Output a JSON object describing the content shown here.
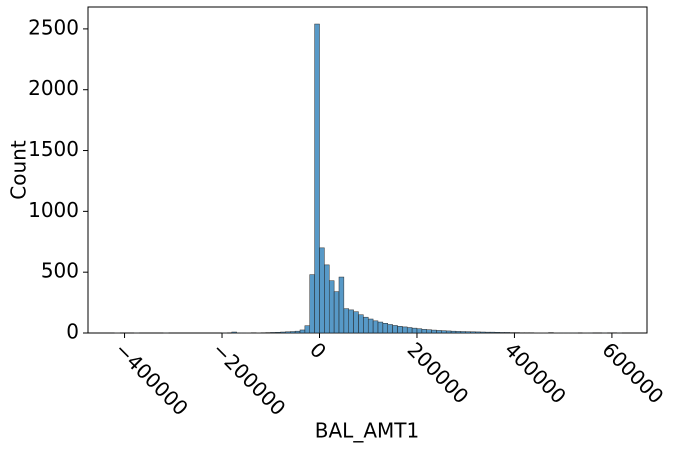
{
  "chart_data": {
    "type": "histogram",
    "xlabel": "BAL_AMT1",
    "ylabel": "Count",
    "color": "#1f77b4",
    "bins": [
      -420000,
      -410000,
      -400000,
      -390000,
      -380000,
      -370000,
      -360000,
      -350000,
      -340000,
      -330000,
      -320000,
      -310000,
      -300000,
      -290000,
      -280000,
      -270000,
      -260000,
      -250000,
      -240000,
      -230000,
      -220000,
      -210000,
      -200000,
      -190000,
      -180000,
      -170000,
      -160000,
      -150000,
      -140000,
      -130000,
      -120000,
      -110000,
      -100000,
      -90000,
      -80000,
      -70000,
      -60000,
      -50000,
      -40000,
      -30000,
      -20000,
      -10000,
      0,
      10000,
      20000,
      30000,
      40000,
      50000,
      60000,
      70000,
      80000,
      90000,
      100000,
      110000,
      120000,
      130000,
      140000,
      150000,
      160000,
      170000,
      180000,
      190000,
      200000,
      210000,
      220000,
      230000,
      240000,
      250000,
      260000,
      270000,
      280000,
      290000,
      300000,
      310000,
      320000,
      330000,
      340000,
      350000,
      360000,
      370000,
      380000,
      390000,
      400000,
      410000,
      420000,
      430000,
      440000,
      450000,
      460000,
      470000,
      480000,
      490000,
      500000,
      510000,
      520000,
      530000,
      540000,
      550000,
      560000,
      570000,
      580000,
      590000,
      600000,
      610000,
      620000
    ],
    "values": [
      2,
      0,
      0,
      0,
      1,
      0,
      0,
      0,
      0,
      0,
      1,
      0,
      0,
      0,
      0,
      0,
      0,
      0,
      0,
      0,
      0,
      0,
      1,
      0,
      8,
      1,
      1,
      2,
      3,
      2,
      3,
      4,
      5,
      6,
      8,
      10,
      12,
      15,
      25,
      60,
      480,
      2540,
      700,
      560,
      430,
      340,
      460,
      200,
      190,
      175,
      150,
      130,
      115,
      100,
      90,
      80,
      70,
      62,
      55,
      50,
      45,
      40,
      35,
      30,
      27,
      24,
      21,
      19,
      17,
      15,
      13,
      12,
      11,
      10,
      9,
      8,
      7,
      7,
      6,
      5,
      5,
      4,
      4,
      3,
      3,
      3,
      2,
      2,
      2,
      4,
      2,
      1,
      1,
      1,
      1,
      0,
      2,
      1,
      0,
      0,
      1,
      0,
      3,
      1
    ],
    "xlim": [
      -475000,
      672000
    ],
    "ylim": [
      0,
      2680
    ],
    "xticks": [
      {
        "value": -400000,
        "label": "−400000"
      },
      {
        "value": -200000,
        "label": "−200000"
      },
      0,
      200000,
      400000,
      600000
    ],
    "yticks": [
      0,
      500,
      1000,
      1500,
      2000,
      2500
    ]
  }
}
